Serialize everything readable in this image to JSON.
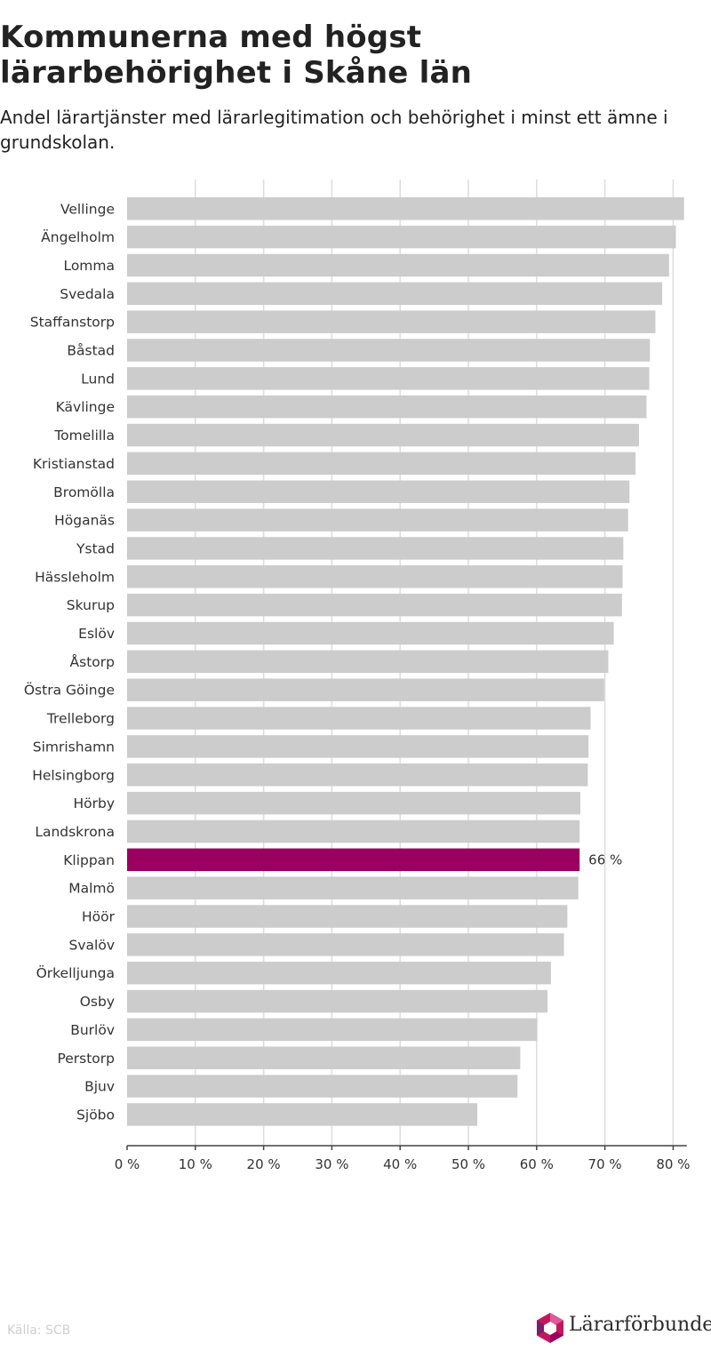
{
  "title": "Kommunerna med högst lärarbehörighet i Skåne län",
  "subtitle": "Andel lärartjänster med lärarlegitimation och behörighet i minst ett ämne i grundskolan.",
  "source": "Källa: SCB",
  "brand": "Lärarförbundet",
  "colors": {
    "bar": "#cccccc",
    "highlight": "#9b0060",
    "grid": "#dcdcdc",
    "text": "#333333"
  },
  "chart_data": {
    "type": "bar",
    "orientation": "horizontal",
    "categories": [
      "Vellinge",
      "Ängelholm",
      "Lomma",
      "Svedala",
      "Staffanstorp",
      "Båstad",
      "Lund",
      "Kävlinge",
      "Tomelilla",
      "Kristianstad",
      "Bromölla",
      "Höganäs",
      "Ystad",
      "Hässleholm",
      "Skurup",
      "Eslöv",
      "Åstorp",
      "Östra Göinge",
      "Trelleborg",
      "Simrishamn",
      "Helsingborg",
      "Hörby",
      "Landskrona",
      "Klippan",
      "Malmö",
      "Höör",
      "Svalöv",
      "Örkelljunga",
      "Osby",
      "Burlöv",
      "Perstorp",
      "Bjuv",
      "Sjöbo"
    ],
    "values": [
      81.6,
      80.4,
      79.4,
      78.4,
      77.4,
      76.6,
      76.5,
      76.1,
      75.0,
      74.5,
      73.6,
      73.4,
      72.7,
      72.6,
      72.5,
      71.3,
      70.5,
      69.9,
      67.9,
      67.6,
      67.5,
      66.4,
      66.3,
      66.3,
      66.1,
      64.5,
      64.0,
      62.1,
      61.6,
      60.1,
      57.6,
      57.2,
      51.3
    ],
    "highlight": "Klippan",
    "highlight_label": "66 %",
    "xlim": [
      0,
      82
    ],
    "xticks": [
      0,
      10,
      20,
      30,
      40,
      50,
      60,
      70,
      80
    ],
    "xtick_labels": [
      "0 %",
      "10 %",
      "20 %",
      "30 %",
      "40 %",
      "50 %",
      "60 %",
      "70 %",
      "80 %"
    ],
    "grid": true,
    "legend": "none"
  }
}
